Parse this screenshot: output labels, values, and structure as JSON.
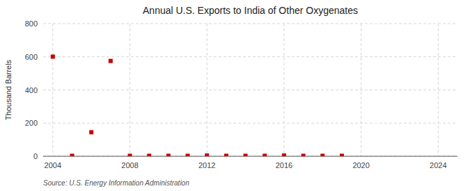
{
  "chart_data": {
    "type": "scatter",
    "title": "Annual U.S. Exports to India of Other Oxygenates",
    "y_label": "Thousand Barrels",
    "source": "Source: U.S. Energy Information Administration",
    "x": [
      2004,
      2005,
      2006,
      2007,
      2008,
      2009,
      2010,
      2011,
      2012,
      2013,
      2014,
      2015,
      2016,
      2017,
      2018,
      2019
    ],
    "values": [
      601,
      3,
      145,
      575,
      3,
      3,
      3,
      3,
      5,
      3,
      3,
      3,
      5,
      3,
      3,
      3
    ],
    "color": "#cc0000",
    "marker": "square",
    "xlim": [
      2003.5,
      2025
    ],
    "ylim": [
      0,
      800
    ],
    "xticks": [
      2004,
      2008,
      2012,
      2016,
      2020,
      2024
    ],
    "yticks": [
      0,
      200,
      400,
      600,
      800
    ],
    "grid": true
  }
}
